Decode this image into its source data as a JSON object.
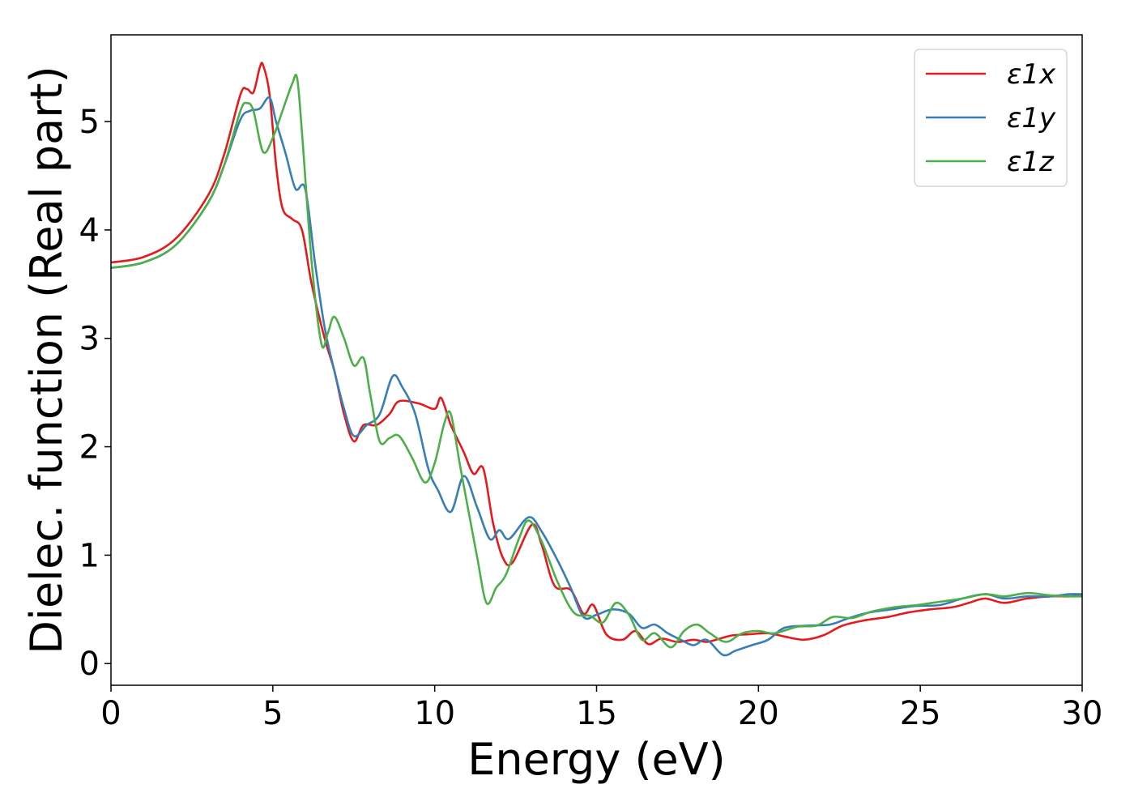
{
  "chart_data": {
    "type": "line",
    "xlabel": "Energy (eV)",
    "ylabel": "Dielec. function (Real part)",
    "xlim": [
      0,
      30
    ],
    "ylim": [
      -0.2,
      5.8
    ],
    "xticks": [
      0,
      5,
      10,
      15,
      20,
      25,
      30
    ],
    "yticks": [
      0,
      1,
      2,
      3,
      4,
      5
    ],
    "grid": false,
    "legend_position": "top-right",
    "series": [
      {
        "name": "ε1x",
        "color": "#e41a1c",
        "points": [
          [
            0,
            3.7
          ],
          [
            1,
            3.75
          ],
          [
            2,
            3.92
          ],
          [
            3,
            4.32
          ],
          [
            3.5,
            4.7
          ],
          [
            4,
            5.25
          ],
          [
            4.2,
            5.3
          ],
          [
            4.4,
            5.27
          ],
          [
            4.6,
            5.5
          ],
          [
            4.7,
            5.52
          ],
          [
            4.9,
            5.25
          ],
          [
            5.1,
            4.6
          ],
          [
            5.3,
            4.2
          ],
          [
            5.6,
            4.1
          ],
          [
            5.9,
            4.0
          ],
          [
            6.2,
            3.5
          ],
          [
            6.6,
            3.0
          ],
          [
            6.9,
            2.7
          ],
          [
            7.2,
            2.3
          ],
          [
            7.5,
            2.05
          ],
          [
            7.8,
            2.2
          ],
          [
            8.2,
            2.2
          ],
          [
            8.6,
            2.3
          ],
          [
            8.9,
            2.42
          ],
          [
            9.5,
            2.4
          ],
          [
            10.0,
            2.35
          ],
          [
            10.2,
            2.45
          ],
          [
            10.5,
            2.2
          ],
          [
            10.9,
            1.95
          ],
          [
            11.2,
            1.75
          ],
          [
            11.5,
            1.8
          ],
          [
            11.8,
            1.3
          ],
          [
            12.1,
            0.98
          ],
          [
            12.4,
            0.93
          ],
          [
            13.0,
            1.28
          ],
          [
            13.3,
            1.1
          ],
          [
            13.7,
            0.72
          ],
          [
            14.2,
            0.68
          ],
          [
            14.6,
            0.46
          ],
          [
            14.9,
            0.54
          ],
          [
            15.3,
            0.27
          ],
          [
            15.8,
            0.22
          ],
          [
            16.2,
            0.3
          ],
          [
            16.6,
            0.18
          ],
          [
            17.0,
            0.23
          ],
          [
            17.5,
            0.2
          ],
          [
            18.0,
            0.22
          ],
          [
            18.4,
            0.2
          ],
          [
            18.8,
            0.23
          ],
          [
            19.2,
            0.26
          ],
          [
            19.7,
            0.27
          ],
          [
            20.3,
            0.28
          ],
          [
            20.8,
            0.25
          ],
          [
            21.4,
            0.22
          ],
          [
            22.0,
            0.26
          ],
          [
            22.6,
            0.35
          ],
          [
            23.3,
            0.4
          ],
          [
            24.0,
            0.43
          ],
          [
            24.6,
            0.47
          ],
          [
            25.3,
            0.5
          ],
          [
            26.0,
            0.52
          ],
          [
            26.5,
            0.56
          ],
          [
            27.0,
            0.6
          ],
          [
            27.6,
            0.56
          ],
          [
            28.3,
            0.6
          ],
          [
            29.0,
            0.62
          ],
          [
            29.6,
            0.62
          ],
          [
            30,
            0.63
          ]
        ]
      },
      {
        "name": "ε1y",
        "color": "#377eb8",
        "points": [
          [
            0,
            3.65
          ],
          [
            1,
            3.7
          ],
          [
            2,
            3.86
          ],
          [
            3,
            4.25
          ],
          [
            3.5,
            4.6
          ],
          [
            4,
            5.02
          ],
          [
            4.3,
            5.1
          ],
          [
            4.6,
            5.12
          ],
          [
            4.9,
            5.22
          ],
          [
            5.1,
            5.0
          ],
          [
            5.4,
            4.7
          ],
          [
            5.7,
            4.38
          ],
          [
            6.0,
            4.38
          ],
          [
            6.3,
            3.7
          ],
          [
            6.6,
            3.1
          ],
          [
            6.9,
            2.7
          ],
          [
            7.2,
            2.35
          ],
          [
            7.5,
            2.1
          ],
          [
            7.9,
            2.2
          ],
          [
            8.3,
            2.3
          ],
          [
            8.7,
            2.65
          ],
          [
            9.0,
            2.55
          ],
          [
            9.4,
            2.3
          ],
          [
            9.8,
            1.8
          ],
          [
            10.1,
            1.6
          ],
          [
            10.5,
            1.4
          ],
          [
            10.9,
            1.73
          ],
          [
            11.3,
            1.45
          ],
          [
            11.7,
            1.15
          ],
          [
            12.0,
            1.23
          ],
          [
            12.3,
            1.15
          ],
          [
            12.9,
            1.35
          ],
          [
            13.3,
            1.22
          ],
          [
            13.8,
            0.95
          ],
          [
            14.2,
            0.7
          ],
          [
            14.6,
            0.43
          ],
          [
            15.0,
            0.45
          ],
          [
            15.5,
            0.5
          ],
          [
            16.0,
            0.46
          ],
          [
            16.4,
            0.33
          ],
          [
            16.8,
            0.36
          ],
          [
            17.2,
            0.28
          ],
          [
            17.6,
            0.22
          ],
          [
            18.0,
            0.17
          ],
          [
            18.4,
            0.22
          ],
          [
            18.9,
            0.08
          ],
          [
            19.3,
            0.12
          ],
          [
            19.8,
            0.17
          ],
          [
            20.3,
            0.22
          ],
          [
            20.8,
            0.33
          ],
          [
            21.5,
            0.35
          ],
          [
            22.2,
            0.36
          ],
          [
            22.8,
            0.42
          ],
          [
            23.4,
            0.47
          ],
          [
            24.1,
            0.5
          ],
          [
            24.8,
            0.53
          ],
          [
            25.6,
            0.54
          ],
          [
            26.3,
            0.6
          ],
          [
            27.0,
            0.64
          ],
          [
            27.6,
            0.6
          ],
          [
            28.3,
            0.62
          ],
          [
            29.0,
            0.62
          ],
          [
            29.6,
            0.64
          ],
          [
            30,
            0.64
          ]
        ]
      },
      {
        "name": "ε1z",
        "color": "#4daf4a",
        "points": [
          [
            0,
            3.65
          ],
          [
            1,
            3.7
          ],
          [
            2,
            3.86
          ],
          [
            3,
            4.25
          ],
          [
            3.5,
            4.6
          ],
          [
            4,
            5.1
          ],
          [
            4.2,
            5.17
          ],
          [
            4.4,
            5.1
          ],
          [
            4.7,
            4.72
          ],
          [
            5.0,
            4.85
          ],
          [
            5.3,
            5.1
          ],
          [
            5.6,
            5.35
          ],
          [
            5.75,
            5.4
          ],
          [
            5.9,
            4.9
          ],
          [
            6.2,
            3.7
          ],
          [
            6.5,
            2.95
          ],
          [
            6.7,
            3.05
          ],
          [
            6.9,
            3.2
          ],
          [
            7.2,
            3.0
          ],
          [
            7.5,
            2.75
          ],
          [
            7.8,
            2.82
          ],
          [
            8.0,
            2.5
          ],
          [
            8.3,
            2.05
          ],
          [
            8.6,
            2.08
          ],
          [
            8.9,
            2.1
          ],
          [
            9.3,
            1.9
          ],
          [
            9.7,
            1.67
          ],
          [
            10.0,
            1.85
          ],
          [
            10.3,
            2.22
          ],
          [
            10.5,
            2.3
          ],
          [
            10.8,
            1.8
          ],
          [
            11.3,
            1.0
          ],
          [
            11.6,
            0.56
          ],
          [
            11.9,
            0.7
          ],
          [
            12.2,
            0.82
          ],
          [
            12.6,
            1.15
          ],
          [
            12.9,
            1.32
          ],
          [
            13.3,
            1.13
          ],
          [
            13.8,
            0.75
          ],
          [
            14.3,
            0.47
          ],
          [
            14.8,
            0.44
          ],
          [
            15.2,
            0.38
          ],
          [
            15.6,
            0.56
          ],
          [
            16.0,
            0.45
          ],
          [
            16.4,
            0.22
          ],
          [
            16.8,
            0.28
          ],
          [
            17.3,
            0.15
          ],
          [
            17.7,
            0.3
          ],
          [
            18.1,
            0.36
          ],
          [
            18.5,
            0.28
          ],
          [
            19.0,
            0.2
          ],
          [
            19.5,
            0.28
          ],
          [
            20.0,
            0.3
          ],
          [
            20.5,
            0.28
          ],
          [
            21.2,
            0.34
          ],
          [
            21.8,
            0.35
          ],
          [
            22.3,
            0.43
          ],
          [
            22.9,
            0.42
          ],
          [
            23.5,
            0.48
          ],
          [
            24.2,
            0.52
          ],
          [
            24.9,
            0.54
          ],
          [
            25.6,
            0.57
          ],
          [
            26.3,
            0.6
          ],
          [
            27.0,
            0.64
          ],
          [
            27.6,
            0.62
          ],
          [
            28.3,
            0.65
          ],
          [
            29.0,
            0.63
          ],
          [
            29.6,
            0.62
          ],
          [
            30,
            0.62
          ]
        ]
      }
    ]
  }
}
